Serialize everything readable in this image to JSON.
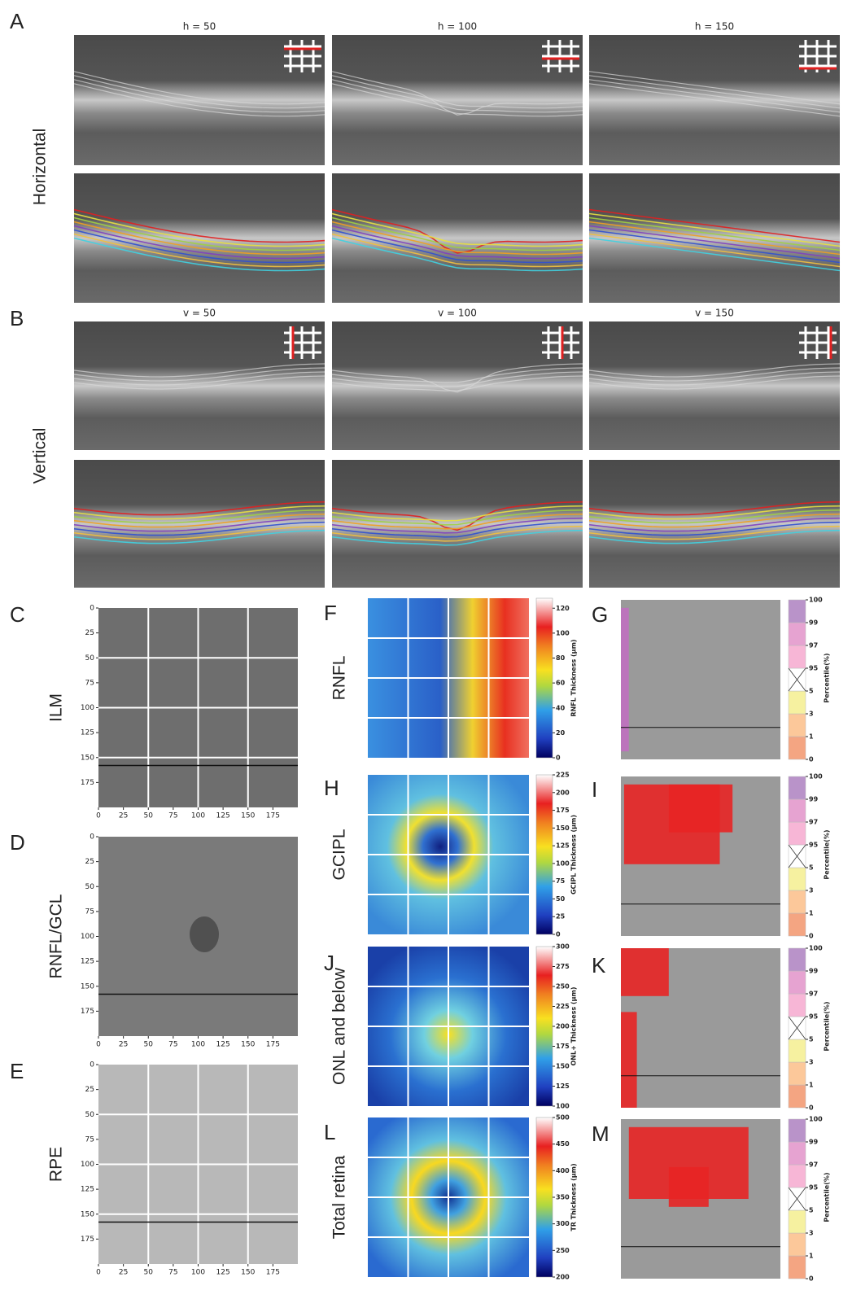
{
  "letters": [
    "A",
    "B",
    "C",
    "D",
    "E",
    "F",
    "G",
    "H",
    "I",
    "J",
    "K",
    "L",
    "M"
  ],
  "horizontal": {
    "label": "Horizontal",
    "titles": [
      "h = 50",
      "h = 100",
      "h = 150"
    ]
  },
  "vertical": {
    "label": "Vertical",
    "titles": [
      "v = 50",
      "v = 100",
      "v = 150"
    ]
  },
  "enface": {
    "labels": [
      "ILM",
      "RNFL/GCL",
      "RPE"
    ],
    "xlim": [
      0,
      200
    ],
    "ylim": [
      0,
      200
    ],
    "xticks": [
      0,
      25,
      50,
      75,
      100,
      125,
      150,
      175
    ],
    "yticks": [
      0,
      25,
      50,
      75,
      100,
      125,
      150,
      175
    ]
  },
  "thickness": [
    {
      "label": "RNFL",
      "colorbar_label": "RNFL Thickness (μm)",
      "lim": [
        0,
        128
      ],
      "ticks": [
        0,
        20,
        40,
        60,
        80,
        100,
        120
      ]
    },
    {
      "label": "GCIPL",
      "colorbar_label": "GCIPL Thickness (μm)",
      "lim": [
        0,
        225
      ],
      "ticks": [
        0,
        25,
        50,
        75,
        100,
        125,
        150,
        175,
        200,
        225
      ]
    },
    {
      "label": "ONL and below",
      "colorbar_label": "ONL+ Thickness (μm)",
      "lim": [
        100,
        300
      ],
      "ticks": [
        100,
        125,
        150,
        175,
        200,
        225,
        250,
        275,
        300
      ]
    },
    {
      "label": "Total retina",
      "colorbar_label": "TR Thickness (μm)",
      "lim": [
        200,
        500
      ],
      "ticks": [
        200,
        250,
        300,
        350,
        400,
        450,
        500
      ]
    }
  ],
  "percentile": {
    "label": "Percentile(%)",
    "ticks": [
      0,
      1,
      3,
      5,
      95,
      97,
      99,
      100
    ]
  }
}
